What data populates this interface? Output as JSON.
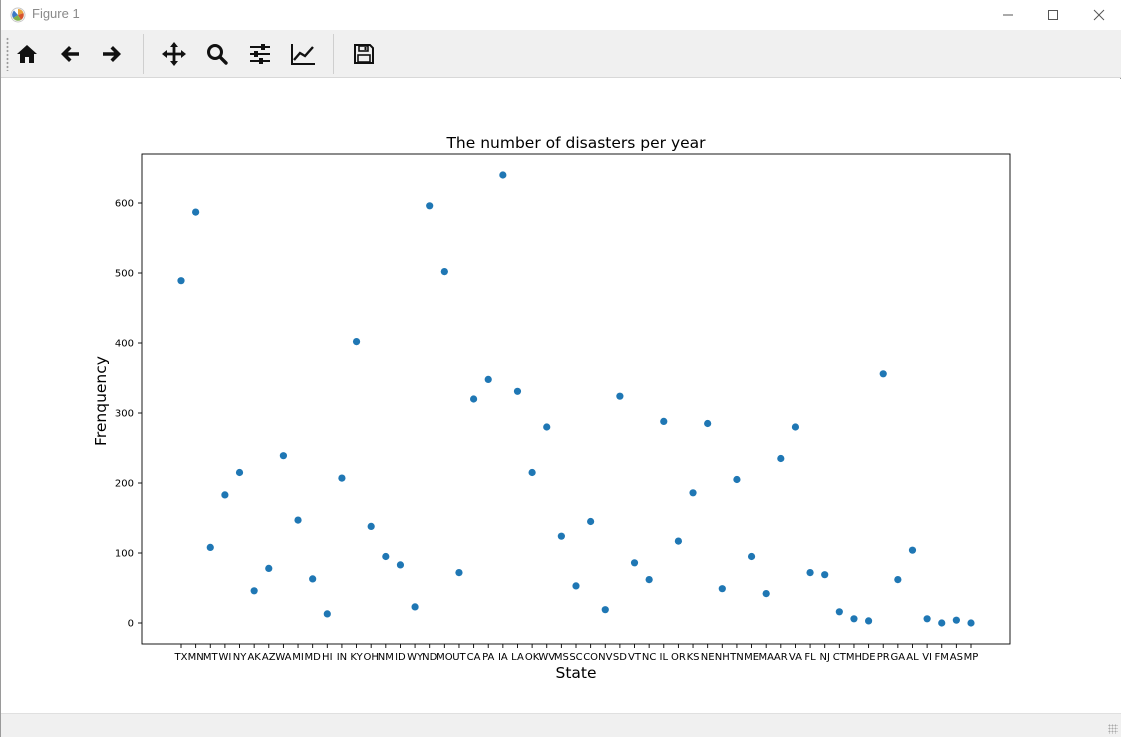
{
  "window": {
    "title": "Figure 1"
  },
  "toolbar": {
    "buttons": [
      {
        "name": "home-icon"
      },
      {
        "name": "back-arrow-icon"
      },
      {
        "name": "forward-arrow-icon"
      },
      {
        "name": "pan-move-icon"
      },
      {
        "name": "zoom-magnifier-icon"
      },
      {
        "name": "configure-subplots-icon"
      },
      {
        "name": "edit-axis-icon"
      },
      {
        "name": "save-disk-icon"
      }
    ]
  },
  "chart_data": {
    "type": "scatter",
    "title": "The number of disasters per year",
    "xlabel": "State",
    "ylabel": "Frenquency",
    "marker_color": "#1f77b4",
    "grid": false,
    "ylim": [
      -30,
      670
    ],
    "yticks": [
      0,
      100,
      200,
      300,
      400,
      500,
      600
    ],
    "categories": [
      "TX",
      "MN",
      "MT",
      "WI",
      "NY",
      "AK",
      "AZ",
      "WA",
      "MI",
      "MD",
      "HI",
      "IN",
      "KY",
      "OH",
      "NM",
      "ID",
      "WY",
      "ND",
      "MO",
      "UT",
      "CA",
      "PA",
      "IA",
      "LA",
      "OK",
      "WV",
      "MS",
      "SC",
      "CO",
      "NV",
      "SD",
      "VT",
      "NC",
      "IL",
      "OR",
      "KS",
      "NE",
      "NH",
      "TN",
      "ME",
      "MA",
      "AR",
      "VA",
      "FL",
      "NJ",
      "CT",
      "MH",
      "DE",
      "PR",
      "GA",
      "AL",
      "VI",
      "FM",
      "AS",
      "MP"
    ],
    "values": [
      489,
      587,
      108,
      183,
      215,
      46,
      78,
      239,
      147,
      63,
      13,
      207,
      402,
      138,
      95,
      83,
      23,
      596,
      502,
      72,
      320,
      348,
      640,
      331,
      215,
      280,
      124,
      53,
      145,
      19,
      324,
      86,
      62,
      288,
      117,
      186,
      285,
      49,
      205,
      95,
      42,
      235,
      280,
      72,
      69,
      16,
      6,
      3,
      356,
      62,
      104,
      6,
      0,
      4,
      0
    ]
  }
}
